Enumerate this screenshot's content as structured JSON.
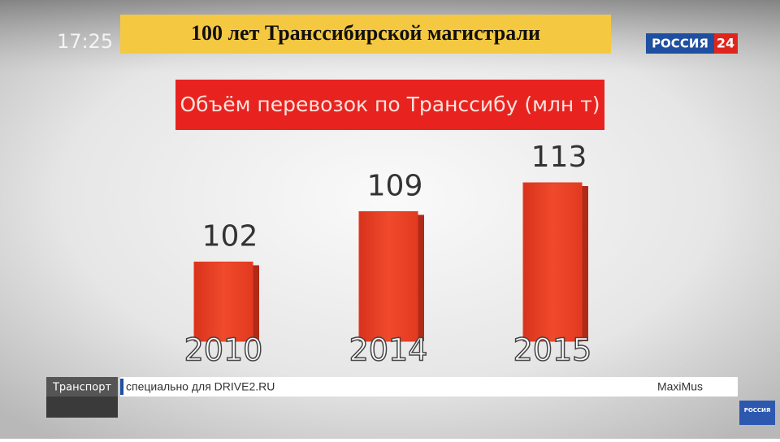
{
  "chart_data": {
    "type": "bar",
    "title": "Объём перевозок по Транссибу (млн т)",
    "categories": [
      "2010",
      "2014",
      "2015"
    ],
    "values": [
      102,
      109,
      113
    ],
    "color": "#e8391f"
  },
  "broadcast": {
    "time": "17:25",
    "headline": "100 лет Транссибирской магистрали",
    "channel": "РОССИЯ",
    "channel_number": "24",
    "section": "Транспорт",
    "ticker": "специально для DRIVE2.RU",
    "author": "MaxiMus",
    "corner_logo": "РОССИЯ"
  }
}
